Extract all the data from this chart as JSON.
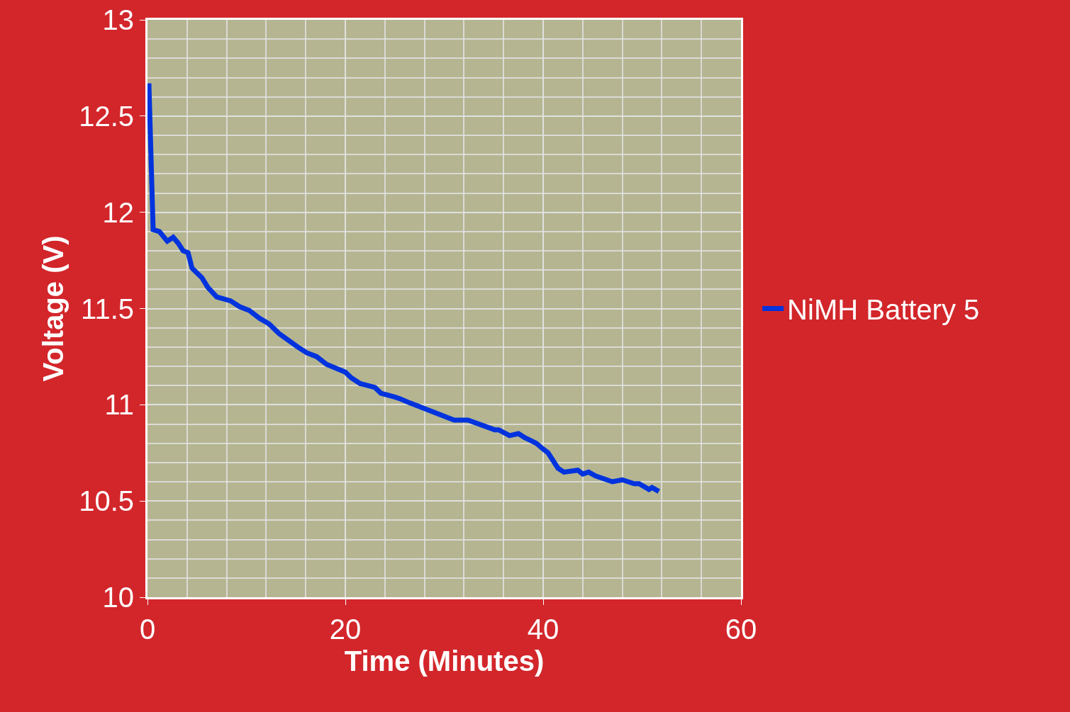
{
  "chart_data": {
    "type": "line",
    "xlabel": "Time (Minutes)",
    "ylabel": "Voltage (V)",
    "xlim": [
      0,
      60
    ],
    "xticks": [
      0,
      20,
      40,
      60
    ],
    "ylim": [
      10,
      13
    ],
    "yticks": [
      10,
      10.5,
      11,
      11.5,
      12,
      12.5,
      13
    ],
    "grid": true,
    "legend": "right",
    "marker": "none",
    "line_style": "solid",
    "series": [
      {
        "name": "NiMH Battery 5",
        "color": "#0033dd",
        "x": [
          0.14,
          0.57,
          1.2,
          2.0,
          2.6,
          3.1,
          3.6,
          4.1,
          4.5,
          5.5,
          6.1,
          7.0,
          8.4,
          9.3,
          10.3,
          11.3,
          12.3,
          13.3,
          15.2,
          16.1,
          17.1,
          18.1,
          20.0,
          20.6,
          21.5,
          23.0,
          23.6,
          25.0,
          25.6,
          26.5,
          31.0,
          32.4,
          35.1,
          35.5,
          36.6,
          37.5,
          38.1,
          39.3,
          40.0,
          40.5,
          41.5,
          42.1,
          43.5,
          44.0,
          44.6,
          45.3,
          47.0,
          48.0,
          49.2,
          49.7,
          50.7,
          51.0,
          51.7
        ],
        "values": [
          12.67,
          11.91,
          11.9,
          11.85,
          11.87,
          11.84,
          11.8,
          11.79,
          11.71,
          11.66,
          11.61,
          11.56,
          11.54,
          11.51,
          11.49,
          11.45,
          11.42,
          11.37,
          11.3,
          11.27,
          11.25,
          11.21,
          11.17,
          11.14,
          11.11,
          11.09,
          11.06,
          11.04,
          11.03,
          11.01,
          10.92,
          10.92,
          10.87,
          10.87,
          10.84,
          10.85,
          10.83,
          10.8,
          10.77,
          10.75,
          10.67,
          10.65,
          10.66,
          10.64,
          10.65,
          10.63,
          10.6,
          10.61,
          10.59,
          10.59,
          10.56,
          10.57,
          10.55
        ]
      }
    ]
  }
}
